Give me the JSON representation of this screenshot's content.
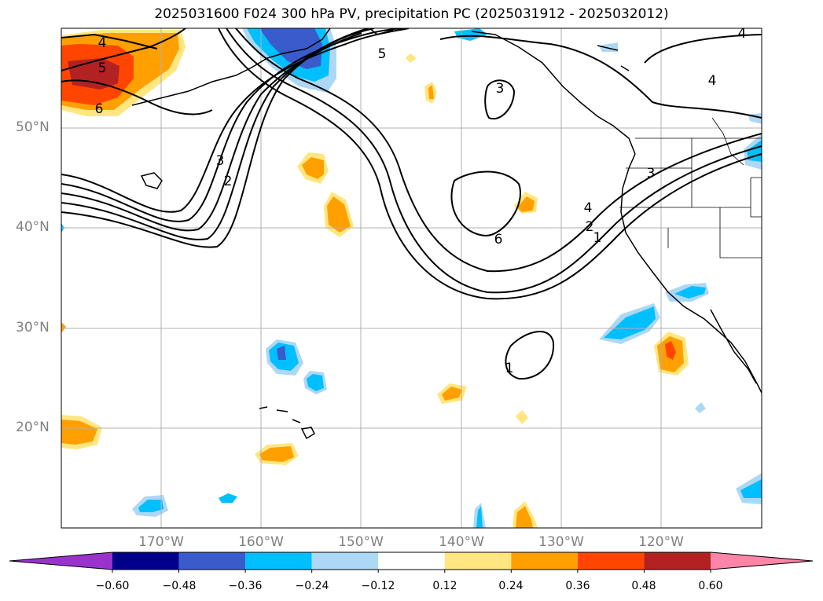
{
  "title": "2025031600 F024 300 hPa PV, precipitation PC (2025031912 - 2025032012)",
  "map": {
    "lon_range": [
      -180,
      -110
    ],
    "lat_range": [
      10,
      60
    ],
    "grid_lines": true,
    "lat_labels": [
      "50°N",
      "40°N",
      "30°N",
      "20°N"
    ],
    "lon_labels": [
      "170°W",
      "160°W",
      "150°W",
      "140°W",
      "130°W",
      "120°W"
    ],
    "pv_contour_labels": [
      "4",
      "5",
      "6",
      "3",
      "2",
      "5",
      "3",
      "6",
      "4",
      "2",
      "1",
      "3",
      "4",
      "4",
      "1"
    ]
  },
  "colorbar": {
    "orientation": "horizontal",
    "extend": "both",
    "tick_labels": [
      "−0.60",
      "−0.48",
      "−0.36",
      "−0.24",
      "−0.12",
      "0.12",
      "0.24",
      "0.36",
      "0.48",
      "0.60"
    ],
    "colors": [
      "#9933cc",
      "#00008b",
      "#3a5bcc",
      "#00bfff",
      "#add8f5",
      "#ffffff",
      "#ffe680",
      "#ffa000",
      "#ff4500",
      "#b22222",
      "#ff85a8"
    ]
  }
}
